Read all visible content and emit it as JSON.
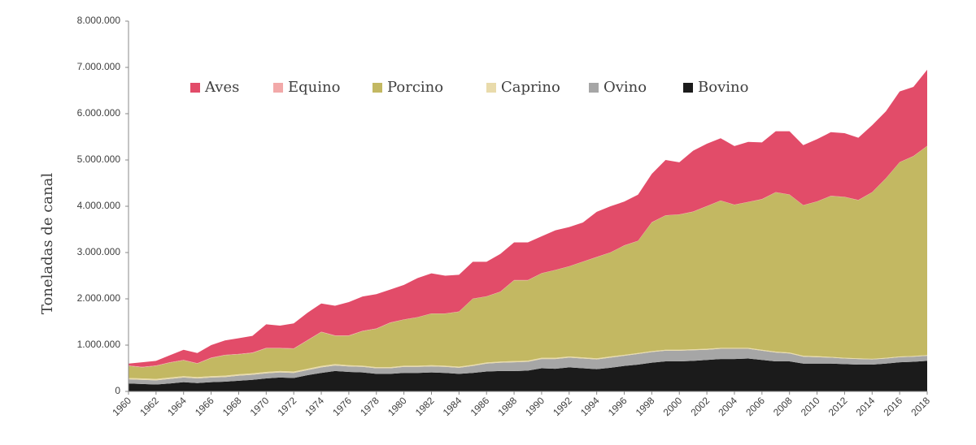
{
  "chart_data": {
    "type": "stacked-area",
    "y_label": "Toneladas de canal",
    "x": [
      1960,
      1961,
      1962,
      1963,
      1964,
      1965,
      1966,
      1967,
      1968,
      1969,
      1970,
      1971,
      1972,
      1973,
      1974,
      1975,
      1976,
      1977,
      1978,
      1979,
      1980,
      1981,
      1982,
      1983,
      1984,
      1985,
      1986,
      1987,
      1988,
      1989,
      1990,
      1991,
      1992,
      1993,
      1994,
      1995,
      1996,
      1997,
      1998,
      1999,
      2000,
      2001,
      2002,
      2003,
      2004,
      2005,
      2006,
      2007,
      2008,
      2009,
      2010,
      2011,
      2012,
      2013,
      2014,
      2015,
      2016,
      2017,
      2018
    ],
    "xlim": [
      1960,
      2018
    ],
    "xticks": [
      1960,
      1962,
      1964,
      1966,
      1968,
      1970,
      1972,
      1974,
      1976,
      1978,
      1980,
      1982,
      1984,
      1986,
      1988,
      1990,
      1992,
      1994,
      1996,
      1998,
      2000,
      2002,
      2004,
      2006,
      2008,
      2010,
      2012,
      2014,
      2016,
      2018
    ],
    "ylim": [
      0,
      8000000
    ],
    "yticks": [
      0,
      {
        "value": 1000000,
        "label": "1.000.000"
      },
      {
        "value": 2000000,
        "label": "2.000.000"
      },
      {
        "value": 3000000,
        "label": "3.000.000"
      },
      {
        "value": 4000000,
        "label": "4.000.000"
      },
      {
        "value": 5000000,
        "label": "5.000.000"
      },
      {
        "value": 6000000,
        "label": "6.000.000"
      },
      {
        "value": 7000000,
        "label": "7.000.000"
      },
      {
        "value": 8000000,
        "label": "8.000.000"
      }
    ],
    "series": [
      {
        "name": "Aves",
        "color": "#e24c69",
        "values": [
          40000,
          100000,
          100000,
          150000,
          220000,
          220000,
          270000,
          310000,
          340000,
          360000,
          510000,
          480000,
          540000,
          590000,
          610000,
          640000,
          720000,
          740000,
          740000,
          710000,
          745000,
          845000,
          865000,
          815000,
          795000,
          795000,
          745000,
          815000,
          815000,
          815000,
          795000,
          855000,
          845000,
          845000,
          975000,
          995000,
          945000,
          995000,
          1045000,
          1195000,
          1125000,
          1315000,
          1345000,
          1345000,
          1265000,
          1295000,
          1225000,
          1315000,
          1365000,
          1295000,
          1345000,
          1375000,
          1375000,
          1345000,
          1445000,
          1445000,
          1525000,
          1495000,
          1645000
        ]
      },
      {
        "name": "Equino",
        "color": "#f2a9a9",
        "values": [
          10000,
          10000,
          10000,
          10000,
          10000,
          10000,
          10000,
          10000,
          10000,
          10000,
          10000,
          10000,
          10000,
          10000,
          10000,
          10000,
          10000,
          10000,
          10000,
          10000,
          5000,
          5000,
          5000,
          5000,
          5000,
          5000,
          5000,
          5000,
          5000,
          5000,
          5000,
          5000,
          5000,
          5000,
          5000,
          5000,
          5000,
          5000,
          5000,
          5000,
          5000,
          5000,
          5000,
          5000,
          5000,
          5000,
          5000,
          5000,
          5000,
          5000,
          5000,
          5000,
          5000,
          5000,
          5000,
          5000,
          5000,
          5000,
          5000
        ]
      },
      {
        "name": "Porcino",
        "color": "#c3b862",
        "values": [
          260000,
          240000,
          280000,
          320000,
          340000,
          290000,
          390000,
          440000,
          430000,
          440000,
          510000,
          490000,
          490000,
          610000,
          730000,
          610000,
          635000,
          745000,
          825000,
          955000,
          995000,
          1045000,
          1115000,
          1125000,
          1185000,
          1425000,
          1425000,
          1505000,
          1745000,
          1735000,
          1825000,
          1895000,
          1945000,
          2065000,
          2185000,
          2245000,
          2360000,
          2420000,
          2780000,
          2900000,
          2920000,
          2970000,
          3080000,
          3180000,
          3090000,
          3150000,
          3250000,
          3440000,
          3410000,
          3250000,
          3340000,
          3475000,
          3475000,
          3415000,
          3595000,
          3875000,
          4195000,
          4315000,
          4515000
        ]
      },
      {
        "name": "Caprino",
        "color": "#e9dbab",
        "values": [
          30000,
          30000,
          30000,
          30000,
          30000,
          30000,
          30000,
          30000,
          30000,
          30000,
          30000,
          30000,
          30000,
          30000,
          30000,
          30000,
          25000,
          25000,
          25000,
          25000,
          25000,
          25000,
          25000,
          25000,
          25000,
          25000,
          25000,
          25000,
          25000,
          25000,
          25000,
          25000,
          25000,
          25000,
          25000,
          25000,
          20000,
          20000,
          20000,
          20000,
          20000,
          20000,
          20000,
          20000,
          20000,
          20000,
          20000,
          20000,
          20000,
          20000,
          20000,
          15000,
          15000,
          15000,
          15000,
          15000,
          15000,
          15000,
          15000
        ]
      },
      {
        "name": "Ovino",
        "color": "#a6a6a6",
        "values": [
          90000,
          90000,
          90000,
          100000,
          100000,
          100000,
          100000,
          100000,
          110000,
          110000,
          110000,
          110000,
          110000,
          110000,
          120000,
          120000,
          120000,
          120000,
          120000,
          120000,
          130000,
          130000,
          130000,
          130000,
          130000,
          150000,
          170000,
          180000,
          190000,
          190000,
          200000,
          210000,
          210000,
          210000,
          210000,
          220000,
          220000,
          230000,
          230000,
          230000,
          230000,
          230000,
          220000,
          220000,
          220000,
          210000,
          200000,
          190000,
          170000,
          150000,
          140000,
          130000,
          120000,
          120000,
          110000,
          110000,
          110000,
          110000,
          110000
        ]
      },
      {
        "name": "Bovino",
        "color": "#1b1b1b",
        "values": [
          170000,
          160000,
          150000,
          170000,
          200000,
          180000,
          200000,
          210000,
          230000,
          250000,
          280000,
          300000,
          290000,
          350000,
          400000,
          440000,
          420000,
          410000,
          380000,
          380000,
          400000,
          400000,
          410000,
          400000,
          380000,
          400000,
          430000,
          440000,
          440000,
          450000,
          500000,
          490000,
          520000,
          500000,
          480000,
          510000,
          550000,
          580000,
          620000,
          650000,
          650000,
          660000,
          680000,
          700000,
          700000,
          710000,
          680000,
          650000,
          650000,
          600000,
          600000,
          600000,
          590000,
          580000,
          580000,
          600000,
          630000,
          640000,
          660000
        ]
      }
    ]
  }
}
